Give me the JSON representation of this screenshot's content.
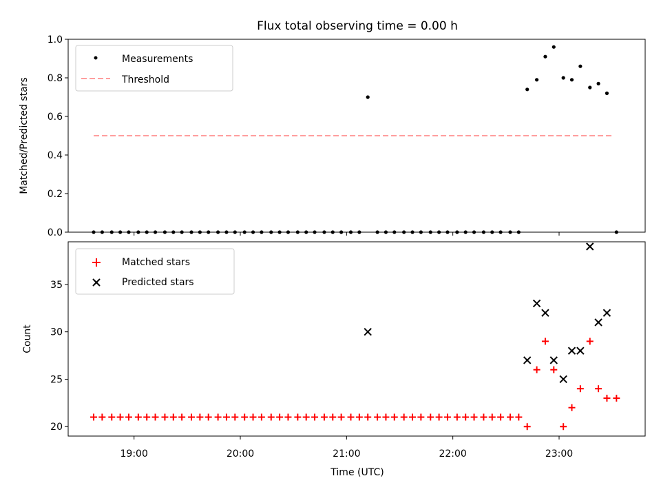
{
  "chart_data": [
    {
      "type": "scatter",
      "title": "Flux total observing time = 0.00 h",
      "xlabel": "",
      "ylabel": "Matched/Predicted stars",
      "xlim": [
        18.38,
        23.81
      ],
      "ylim": [
        0.0,
        1.0
      ],
      "yticks": [
        0.0,
        0.2,
        0.4,
        0.6,
        0.8,
        1.0
      ],
      "ytick_labels": [
        "0.0",
        "0.2",
        "0.4",
        "0.6",
        "0.8",
        "1.0"
      ],
      "legend_location": "upper-left",
      "legend": [
        {
          "label": "Measurements",
          "marker": "dot",
          "color": "#000000"
        },
        {
          "label": "Threshold",
          "style": "dashed",
          "color": "#ff7f7f"
        }
      ],
      "threshold": {
        "value": 0.5,
        "x_start": 18.62,
        "x_end": 23.5
      },
      "series": [
        {
          "name": "Measurements",
          "x": [
            18.62,
            18.7,
            18.79,
            18.87,
            18.95,
            19.04,
            19.12,
            19.2,
            19.29,
            19.37,
            19.45,
            19.54,
            19.62,
            19.7,
            19.79,
            19.87,
            19.95,
            20.04,
            20.12,
            20.2,
            20.29,
            20.37,
            20.45,
            20.54,
            20.62,
            20.7,
            20.79,
            20.87,
            20.95,
            21.04,
            21.12,
            21.2,
            21.29,
            21.37,
            21.45,
            21.54,
            21.62,
            21.7,
            21.79,
            21.87,
            21.95,
            22.04,
            22.12,
            22.2,
            22.29,
            22.37,
            22.45,
            22.54,
            22.62,
            22.7,
            22.79,
            22.87,
            22.95,
            23.04,
            23.12,
            23.2,
            23.29,
            23.37,
            23.45,
            23.54
          ],
          "y": [
            0,
            0,
            0,
            0,
            0,
            0,
            0,
            0,
            0,
            0,
            0,
            0,
            0,
            0,
            0,
            0,
            0,
            0,
            0,
            0,
            0,
            0,
            0,
            0,
            0,
            0,
            0,
            0,
            0,
            0,
            0,
            0.7,
            0,
            0,
            0,
            0,
            0,
            0,
            0,
            0,
            0,
            0,
            0,
            0,
            0,
            0,
            0,
            0,
            0,
            0.74,
            0.79,
            0.91,
            0.96,
            0.8,
            0.79,
            0.86,
            0.75,
            0.77,
            0.72,
            0
          ]
        }
      ]
    },
    {
      "type": "scatter",
      "title": "",
      "xlabel": "Time (UTC)",
      "ylabel": "Count",
      "xlim": [
        18.38,
        23.81
      ],
      "ylim": [
        19.0,
        39.5
      ],
      "yticks": [
        20,
        25,
        30,
        35
      ],
      "ytick_labels": [
        "20",
        "25",
        "30",
        "35"
      ],
      "xticks": [
        19,
        20,
        21,
        22,
        23
      ],
      "xtick_labels": [
        "19:00",
        "20:00",
        "21:00",
        "22:00",
        "23:00"
      ],
      "legend_location": "upper-left",
      "legend": [
        {
          "label": "Matched stars",
          "marker": "plus",
          "color": "#ff0000"
        },
        {
          "label": "Predicted stars",
          "marker": "x",
          "color": "#000000"
        }
      ],
      "series": [
        {
          "name": "Matched stars",
          "x": [
            18.62,
            18.7,
            18.79,
            18.87,
            18.95,
            19.04,
            19.12,
            19.2,
            19.29,
            19.37,
            19.45,
            19.54,
            19.62,
            19.7,
            19.79,
            19.87,
            19.95,
            20.04,
            20.12,
            20.2,
            20.29,
            20.37,
            20.45,
            20.54,
            20.62,
            20.7,
            20.79,
            20.87,
            20.95,
            21.04,
            21.12,
            21.2,
            21.29,
            21.37,
            21.45,
            21.54,
            21.62,
            21.7,
            21.79,
            21.87,
            21.95,
            22.04,
            22.12,
            22.2,
            22.29,
            22.37,
            22.45,
            22.54,
            22.62,
            22.7,
            22.79,
            22.87,
            22.95,
            23.04,
            23.12,
            23.2,
            23.29,
            23.37,
            23.45,
            23.54
          ],
          "y": [
            21,
            21,
            21,
            21,
            21,
            21,
            21,
            21,
            21,
            21,
            21,
            21,
            21,
            21,
            21,
            21,
            21,
            21,
            21,
            21,
            21,
            21,
            21,
            21,
            21,
            21,
            21,
            21,
            21,
            21,
            21,
            21,
            21,
            21,
            21,
            21,
            21,
            21,
            21,
            21,
            21,
            21,
            21,
            21,
            21,
            21,
            21,
            21,
            21,
            20,
            26,
            29,
            26,
            20,
            22,
            24,
            29,
            24,
            23,
            23
          ]
        },
        {
          "name": "Predicted stars",
          "x": [
            21.2,
            22.7,
            22.79,
            22.87,
            22.95,
            23.04,
            23.12,
            23.2,
            23.29,
            23.37,
            23.45
          ],
          "y": [
            30,
            27,
            33,
            32,
            27,
            25,
            28,
            28,
            39,
            31,
            32
          ]
        }
      ]
    }
  ]
}
